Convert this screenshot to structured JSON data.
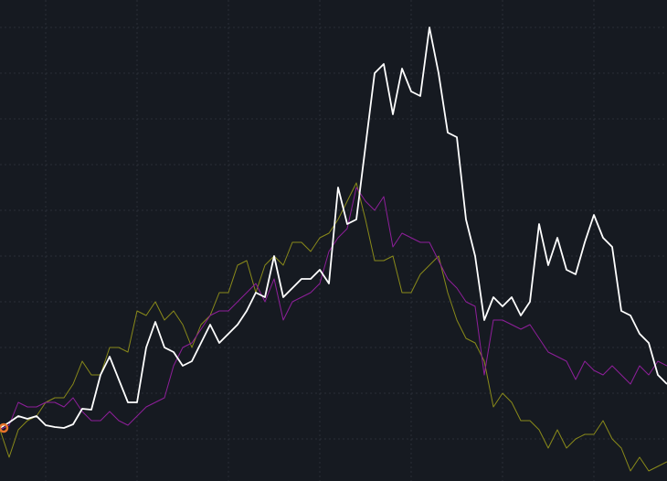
{
  "chart_data": {
    "type": "line",
    "background": "#161a21",
    "grid": true,
    "grid_color": "#2a2f38",
    "xlim": [
      0,
      730
    ],
    "ylim": [
      0,
      526
    ],
    "xticks": [
      50,
      150,
      250,
      350,
      450,
      550,
      650
    ],
    "yticks": [
      46,
      96,
      146,
      196,
      246,
      296,
      346,
      396,
      446,
      496
    ],
    "x": [
      0,
      10,
      20,
      30,
      40,
      50,
      60,
      70,
      80,
      90,
      100,
      110,
      120,
      130,
      140,
      150,
      160,
      170,
      180,
      190,
      200,
      210,
      220,
      230,
      240,
      250,
      260,
      270,
      280,
      290,
      300,
      310,
      320,
      330,
      340,
      350,
      360,
      370,
      380,
      390,
      400,
      410,
      420,
      430,
      440,
      450,
      460,
      470,
      480,
      490,
      500,
      510,
      520,
      530,
      540,
      550,
      560,
      570,
      580,
      590,
      600,
      610,
      620,
      630,
      640,
      650,
      660,
      670,
      680,
      690,
      700,
      710,
      720,
      730
    ],
    "series": [
      {
        "color": "#8a8a1a",
        "width": 1,
        "values": [
          56,
          26,
          56,
          66,
          71,
          86,
          91,
          91,
          106,
          131,
          116,
          116,
          146,
          146,
          141,
          186,
          181,
          196,
          176,
          186,
          171,
          146,
          171,
          181,
          206,
          206,
          236,
          241,
          206,
          236,
          246,
          236,
          261,
          261,
          251,
          266,
          271,
          286,
          306,
          326,
          286,
          241,
          241,
          246,
          206,
          206,
          226,
          236,
          246,
          206,
          176,
          156,
          151,
          131,
          81,
          96,
          86,
          66,
          66,
          56,
          36,
          56,
          36,
          46,
          51,
          51,
          66,
          46,
          36,
          11,
          26,
          11,
          16,
          21
        ]
      },
      {
        "color": "#8e1f9a",
        "width": 1,
        "values": [
          56,
          61,
          86,
          81,
          81,
          86,
          86,
          81,
          91,
          76,
          66,
          66,
          76,
          66,
          61,
          71,
          81,
          86,
          91,
          126,
          146,
          151,
          166,
          181,
          186,
          186,
          196,
          206,
          216,
          196,
          221,
          176,
          196,
          201,
          206,
          216,
          251,
          266,
          276,
          321,
          306,
          296,
          311,
          256,
          271,
          266,
          261,
          261,
          241,
          221,
          211,
          196,
          191,
          116,
          176,
          176,
          171,
          166,
          171,
          156,
          141,
          136,
          131,
          111,
          131,
          121,
          116,
          126,
          116,
          106,
          126,
          116,
          131,
          126
        ]
      },
      {
        "color": "#ffffff",
        "width": 1.8,
        "values": [
          58,
          64,
          71,
          68,
          71,
          61,
          59,
          58,
          62,
          79,
          78,
          116,
          136,
          111,
          86,
          86,
          146,
          174,
          146,
          141,
          126,
          131,
          151,
          171,
          151,
          161,
          171,
          186,
          206,
          201,
          246,
          201,
          211,
          221,
          221,
          231,
          216,
          321,
          281,
          286,
          366,
          446,
          456,
          401,
          451,
          426,
          421,
          496,
          446,
          381,
          376,
          286,
          246,
          176,
          201,
          191,
          201,
          181,
          196,
          281,
          236,
          266,
          231,
          226,
          261,
          291,
          266,
          256,
          186,
          181,
          161,
          151,
          116,
          106
        ]
      }
    ],
    "highlight": {
      "x": 4,
      "y": 58,
      "color": "#e8742a"
    }
  }
}
